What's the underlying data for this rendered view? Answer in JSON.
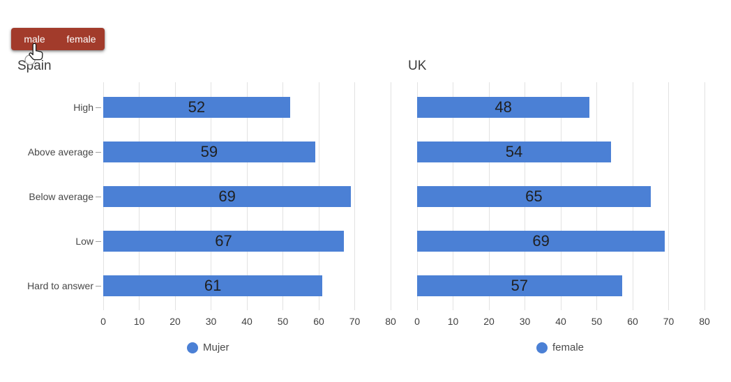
{
  "toggle": {
    "male_label": "male",
    "female_label": "female"
  },
  "colors": {
    "bar": "#4b80d5",
    "button_bg": "#a23b2b",
    "button_text": "#ffffff",
    "grid": "#e2e2e2",
    "title_text": "#3c3c3c",
    "axis_text": "#3f3f3f",
    "category_text": "#474747",
    "value_text": "#1f1f1f",
    "legend_text": "#4a4a4a"
  },
  "chart_data": [
    {
      "type": "bar",
      "orientation": "horizontal",
      "title": "Spain",
      "categories": [
        "High",
        "Above average",
        "Below average",
        "Low",
        "Hard to answer"
      ],
      "series": [
        {
          "name": "Mujer",
          "values": [
            52,
            59,
            69,
            67,
            61
          ]
        }
      ],
      "xlim": [
        0,
        80
      ],
      "xticks": [
        0,
        10,
        20,
        30,
        40,
        50,
        60,
        70,
        80
      ],
      "grid": true,
      "value_labels": "inside-center",
      "legend": {
        "label": "Mujer",
        "position": "bottom"
      }
    },
    {
      "type": "bar",
      "orientation": "horizontal",
      "title": "UK",
      "categories": [
        "High",
        "Above average",
        "Below average",
        "Low",
        "Hard to answer"
      ],
      "series": [
        {
          "name": "female",
          "values": [
            48,
            54,
            65,
            69,
            57
          ]
        }
      ],
      "xlim": [
        0,
        80
      ],
      "xticks": [
        0,
        10,
        20,
        30,
        40,
        50,
        60,
        70,
        80
      ],
      "grid": true,
      "value_labels": "inside-center",
      "legend": {
        "label": "female",
        "position": "bottom"
      }
    }
  ]
}
